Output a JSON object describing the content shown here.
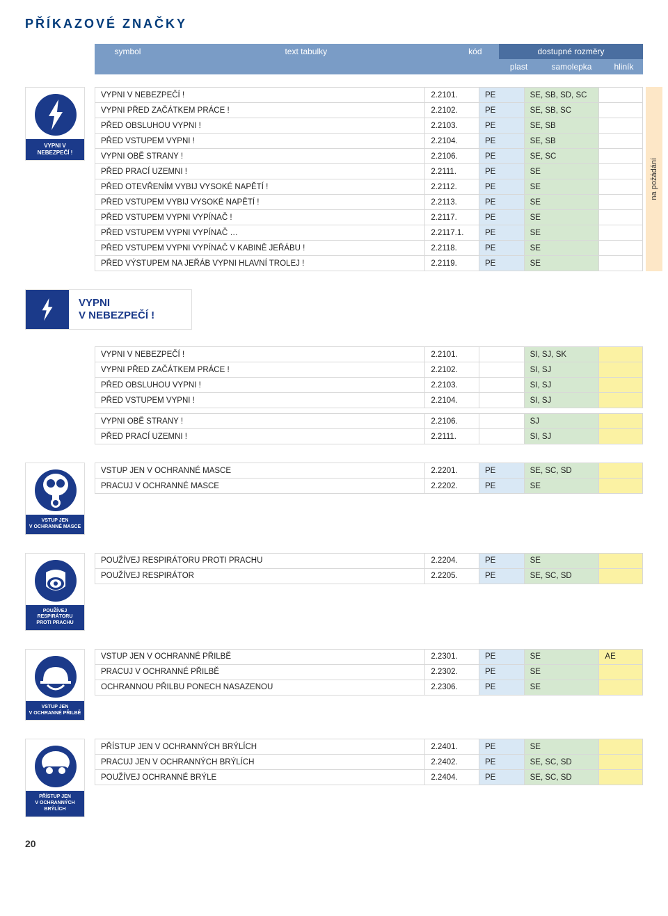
{
  "page": {
    "title": "PŘÍKAZOVÉ ZNAČKY",
    "number": "20"
  },
  "header": {
    "symbol": "symbol",
    "text": "text tabulky",
    "kod": "kód",
    "dostupne": "dostupné rozměry",
    "plast": "plast",
    "samo": "samolepka",
    "hlinik": "hliník"
  },
  "vstrip": "na požádání",
  "signs": {
    "s1": {
      "caption": "VYPNI V NEBEZPEČÍ !"
    },
    "s2a": "VYPNI",
    "s2b": "V NEBEZPEČÍ !",
    "s3": {
      "caption": "VSTUP JEN\nV OCHRANNÉ MASCE"
    },
    "s4": {
      "caption": "POUŽÍVEJ RESPIRÁTORU\nPROTI PRACHU"
    },
    "s5": {
      "caption": "VSTUP JEN\nV OCHRANNÉ PŘILBĚ"
    },
    "s6": {
      "caption": "PŘÍSTUP JEN\nV OCHRANNÝCH BRÝLÍCH"
    }
  },
  "tables": {
    "t1": [
      {
        "text": "VYPNI V NEBEZPEČÍ !",
        "kod": "2.2101.",
        "plast": "PE",
        "samo": "SE, SB, SD, SC",
        "hlinik": ""
      },
      {
        "text": "VYPNI PŘED ZAČÁTKEM PRÁCE !",
        "kod": "2.2102.",
        "plast": "PE",
        "samo": "SE, SB, SC",
        "hlinik": ""
      },
      {
        "text": "PŘED OBSLUHOU VYPNI !",
        "kod": "2.2103.",
        "plast": "PE",
        "samo": "SE, SB",
        "hlinik": ""
      },
      {
        "text": "PŘED VSTUPEM VYPNI !",
        "kod": "2.2104.",
        "plast": "PE",
        "samo": "SE, SB",
        "hlinik": ""
      },
      {
        "text": "VYPNI OBĚ STRANY !",
        "kod": "2.2106.",
        "plast": "PE",
        "samo": "SE, SC",
        "hlinik": ""
      },
      {
        "text": "PŘED PRACÍ UZEMNI !",
        "kod": "2.2111.",
        "plast": "PE",
        "samo": "SE",
        "hlinik": ""
      },
      {
        "text": "PŘED OTEVŘENÍM VYBIJ VYSOKÉ NAPĚTÍ !",
        "kod": "2.2112.",
        "plast": "PE",
        "samo": "SE",
        "hlinik": ""
      },
      {
        "text": "PŘED VSTUPEM VYBIJ VYSOKÉ NAPĚTÍ !",
        "kod": "2.2113.",
        "plast": "PE",
        "samo": "SE",
        "hlinik": ""
      },
      {
        "text": "PŘED VSTUPEM VYPNI VYPÍNAČ !",
        "kod": "2.2117.",
        "plast": "PE",
        "samo": "SE",
        "hlinik": ""
      },
      {
        "text": "PŘED VSTUPEM VYPNI VYPÍNAČ …",
        "kod": "2.2117.1.",
        "plast": "PE",
        "samo": "SE",
        "hlinik": ""
      },
      {
        "text": "PŘED VSTUPEM VYPNI VYPÍNAČ V KABINĚ JEŘÁBU !",
        "kod": "2.2118.",
        "plast": "PE",
        "samo": "SE",
        "hlinik": ""
      },
      {
        "text": "PŘED VÝSTUPEM NA JEŘÁB VYPNI HLAVNÍ TROLEJ !",
        "kod": "2.2119.",
        "plast": "PE",
        "samo": "SE",
        "hlinik": ""
      }
    ],
    "t2": [
      {
        "text": "VYPNI V NEBEZPEČÍ !",
        "kod": "2.2101.",
        "plast": "",
        "samo": "SI, SJ, SK",
        "hlinik": ""
      },
      {
        "text": "VYPNI PŘED ZAČÁTKEM PRÁCE !",
        "kod": "2.2102.",
        "plast": "",
        "samo": "SI, SJ",
        "hlinik": ""
      },
      {
        "text": "PŘED OBSLUHOU VYPNI !",
        "kod": "2.2103.",
        "plast": "",
        "samo": "SI, SJ",
        "hlinik": ""
      },
      {
        "text": "PŘED VSTUPEM VYPNI !",
        "kod": "2.2104.",
        "plast": "",
        "samo": "SI, SJ",
        "hlinik": ""
      },
      {
        "text": "VYPNI OBĚ STRANY !",
        "kod": "2.2106.",
        "plast": "",
        "samo": "SJ",
        "hlinik": ""
      },
      {
        "text": "PŘED PRACÍ UZEMNI !",
        "kod": "2.2111.",
        "plast": "",
        "samo": "SI, SJ",
        "hlinik": ""
      }
    ],
    "t3": [
      {
        "text": "VSTUP JEN V OCHRANNÉ MASCE",
        "kod": "2.2201.",
        "plast": "PE",
        "samo": "SE, SC, SD",
        "hlinik": ""
      },
      {
        "text": "PRACUJ V OCHRANNÉ MASCE",
        "kod": "2.2202.",
        "plast": "PE",
        "samo": "SE",
        "hlinik": ""
      }
    ],
    "t4": [
      {
        "text": "POUŽÍVEJ RESPIRÁTORU PROTI PRACHU",
        "kod": "2.2204.",
        "plast": "PE",
        "samo": "SE",
        "hlinik": ""
      },
      {
        "text": "POUŽÍVEJ RESPIRÁTOR",
        "kod": "2.2205.",
        "plast": "PE",
        "samo": "SE, SC, SD",
        "hlinik": ""
      }
    ],
    "t5": [
      {
        "text": "VSTUP JEN V OCHRANNÉ PŘILBĚ",
        "kod": "2.2301.",
        "plast": "PE",
        "samo": "SE",
        "hlinik": "AE"
      },
      {
        "text": "PRACUJ V OCHRANNÉ PŘILBĚ",
        "kod": "2.2302.",
        "plast": "PE",
        "samo": "SE",
        "hlinik": ""
      },
      {
        "text": "OCHRANNOU PŘILBU PONECH NASAZENOU",
        "kod": "2.2306.",
        "plast": "PE",
        "samo": "SE",
        "hlinik": ""
      }
    ],
    "t6": [
      {
        "text": "PŘÍSTUP JEN V OCHRANNÝCH BRÝLÍCH",
        "kod": "2.2401.",
        "plast": "PE",
        "samo": "SE",
        "hlinik": ""
      },
      {
        "text": "PRACUJ JEN V OCHRANNÝCH BRÝLÍCH",
        "kod": "2.2402.",
        "plast": "PE",
        "samo": "SE, SC, SD",
        "hlinik": ""
      },
      {
        "text": "POUŽÍVEJ OCHRANNÉ BRÝLE",
        "kod": "2.2404.",
        "plast": "PE",
        "samo": "SE, SC, SD",
        "hlinik": ""
      }
    ]
  },
  "colors": {
    "brand_blue": "#1b3a8a",
    "header_light": "#7a9cc6",
    "header_dark": "#4a6ea0",
    "pe_bg": "#d9e8f5",
    "se_bg": "#d5e8d0",
    "yel_bg": "#fbf2a3",
    "vstrip_bg": "#fde7c7"
  }
}
